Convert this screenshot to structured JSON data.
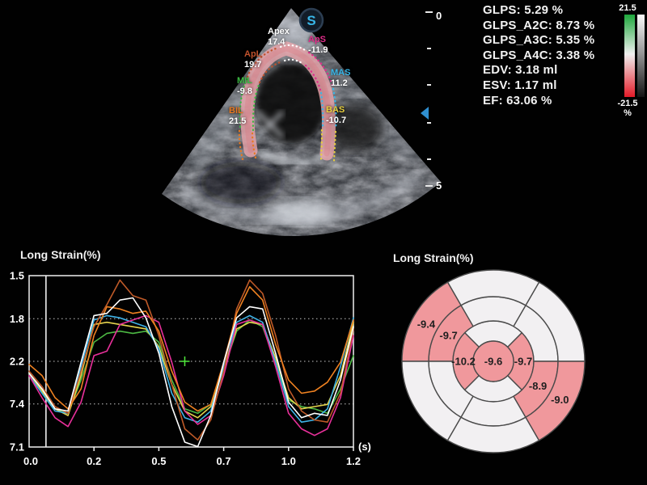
{
  "app": {
    "background": "#010101"
  },
  "ultrasound": {
    "logo_text": "S",
    "segments": [
      {
        "id": "apex",
        "label": "Apex",
        "value": "17.4",
        "color": "#ffffff"
      },
      {
        "id": "apl",
        "label": "ApL",
        "value": "19.7",
        "color": "#c0522d"
      },
      {
        "id": "aps",
        "label": "ApS",
        "value": "-11.9",
        "color": "#e02d8a"
      },
      {
        "id": "mil",
        "label": "MIL",
        "value": "-9.8",
        "color": "#3cb843"
      },
      {
        "id": "mas",
        "label": "MAS",
        "value": "11.2",
        "color": "#38b6e8"
      },
      {
        "id": "bil",
        "label": "BIL",
        "value": "21.5",
        "color": "#e87820"
      },
      {
        "id": "bas",
        "label": "BAS",
        "value": "-10.7",
        "color": "#e8cf3e"
      }
    ],
    "ruler": {
      "top_label": "0",
      "bottom_label": "5"
    }
  },
  "measurements": {
    "lines": [
      "GLPS: 5.29 %",
      "GLPS_A2C: 8.73 %",
      "GLPS_A3C: 5.35 %",
      "GLPS_A4C: 3.38 %",
      "EDV: 3.18 ml",
      "ESV: 1.17 ml",
      "EF: 63.06 %"
    ]
  },
  "colorbar": {
    "max": "21.5",
    "min": "-21.5",
    "unit": "%",
    "positive_color": "#1ea83c",
    "negative_color": "#e41b28"
  },
  "chart": {
    "title": "Long Strain(%)",
    "x_unit": "(s)",
    "cursor_t": 0.065,
    "cross_marker": {
      "t": 0.6,
      "value": 2.2,
      "color": "#50e83c"
    },
    "y_ticks": [
      {
        "value": 21.5,
        "label": "1.5",
        "grid": false
      },
      {
        "value": 11.8,
        "label": "1.8",
        "grid": true
      },
      {
        "value": 2.2,
        "label": "2.2",
        "grid": true
      },
      {
        "value": -7.4,
        "label": "7.4",
        "grid": true
      },
      {
        "value": -17.1,
        "label": "7.1",
        "grid": false
      }
    ],
    "y_tick_labels_clipped_at_screen_edge": true,
    "x_ticks": [
      {
        "t": 0,
        "label": "0.0",
        "tick": false
      },
      {
        "t": 0.25,
        "label": "0.2",
        "tick": true
      },
      {
        "t": 0.5,
        "label": "0.5",
        "tick": true
      },
      {
        "t": 0.75,
        "label": "0.7",
        "tick": true
      },
      {
        "t": 1.0,
        "label": "1.0",
        "tick": true
      },
      {
        "t": 1.25,
        "label": "1.2",
        "tick": true
      }
    ]
  },
  "chart_data": [
    {
      "type": "line",
      "title": "Long Strain(%)",
      "xlabel": "(s)",
      "ylabel": "Long Strain(%)",
      "x_range": [
        0,
        1.25
      ],
      "y_range": [
        -17.1,
        21.5
      ],
      "grid": "dotted horizontal",
      "legend": "none",
      "x": [
        0,
        0.05,
        0.1,
        0.15,
        0.2,
        0.25,
        0.3,
        0.35,
        0.4,
        0.45,
        0.5,
        0.55,
        0.6,
        0.65,
        0.7,
        0.75,
        0.8,
        0.85,
        0.9,
        0.95,
        1,
        1.05,
        1.1,
        1.15,
        1.2,
        1.25
      ],
      "series": [
        {
          "name": "MIL",
          "color": "#4cb843",
          "values": [
            -0.5,
            -4.5,
            -8.5,
            -9.5,
            -2,
            6.5,
            8.5,
            9,
            8.5,
            9,
            6.5,
            -2,
            -8.5,
            -9.5,
            -7.5,
            0.5,
            9,
            11.5,
            10,
            2,
            -6.5,
            -8,
            -8.5,
            -9.5,
            -4,
            3.5
          ]
        },
        {
          "name": "BAS",
          "color": "#e5d44e",
          "values": [
            -0.5,
            -4.5,
            -8.5,
            -10,
            -1,
            10.5,
            11,
            10.5,
            10,
            9.5,
            5.5,
            -3,
            -9,
            -10.5,
            -8,
            0.5,
            9.5,
            11,
            10.5,
            3,
            -6,
            -8.5,
            -8,
            -7.5,
            -1,
            11
          ]
        },
        {
          "name": "MAS",
          "color": "#3fb3e8",
          "values": [
            -1,
            -5,
            -9,
            -9.5,
            1,
            11.5,
            12.5,
            12,
            11,
            10,
            5,
            -5,
            -10.5,
            -11.5,
            -9,
            1,
            11,
            12.5,
            11,
            2,
            -8,
            -11.5,
            -11,
            -8.5,
            1,
            12
          ]
        },
        {
          "name": "ApS",
          "color": "#e8309a",
          "values": [
            -1,
            -6,
            -10.5,
            -12.5,
            -7,
            3.5,
            4.5,
            10.5,
            11.5,
            12.5,
            11,
            2,
            -9,
            -12,
            -10,
            -1,
            10.5,
            11.5,
            10.5,
            1,
            -9.5,
            -13,
            -14.5,
            -13,
            -6,
            8
          ]
        },
        {
          "name": "ApL",
          "color": "#bf5a28",
          "values": [
            0,
            -3.5,
            -8,
            -9.5,
            0,
            10,
            15,
            20.5,
            17,
            16,
            8,
            -3,
            -13,
            -15.5,
            -11,
            0,
            14,
            20.5,
            17.5,
            8,
            -4,
            -9,
            -11,
            -11.5,
            -5,
            9.5
          ]
        },
        {
          "name": "BIL",
          "color": "#f08221",
          "values": [
            1.5,
            -1,
            -6,
            -8.5,
            -4,
            8,
            14.5,
            14,
            13,
            13.5,
            9,
            0,
            -7,
            -9,
            -7.5,
            2,
            13,
            19,
            16,
            6,
            -2,
            -5,
            -4.5,
            -2.5,
            2,
            11.5
          ]
        },
        {
          "name": "Apex",
          "color": "#ffffff",
          "values": [
            -0.5,
            -4,
            -8.5,
            -9,
            2,
            12.5,
            13,
            16,
            16.5,
            12,
            4,
            -8,
            -16,
            -17,
            -10,
            2,
            12,
            14.5,
            14,
            4,
            -7,
            -10.5,
            -9.5,
            -10,
            -2,
            10
          ]
        }
      ]
    },
    {
      "type": "polar_map",
      "title": "Long Strain(%)",
      "labeled_values": [
        -9.4,
        -9.7,
        -10.2,
        -9.6,
        -9.7,
        -8.9,
        -9.0
      ]
    }
  ],
  "bullseye": {
    "title": "Long Strain(%)",
    "radii": [
      25,
      50,
      80,
      113
    ],
    "highlight_color": "#f0989c",
    "base_color": "#f2f0f2",
    "border_color": "#4a4a4a",
    "center": {
      "value": "-9.6",
      "highlighted": true
    },
    "segments": [
      {
        "ring": 1,
        "a0": 45,
        "a1": 135,
        "highlighted": false
      },
      {
        "ring": 1,
        "a0": 135,
        "a1": 225,
        "highlighted": true,
        "value": "-10.2",
        "label_angle": 180,
        "label_radius": 37
      },
      {
        "ring": 1,
        "a0": 225,
        "a1": 315,
        "highlighted": false
      },
      {
        "ring": 1,
        "a0": -45,
        "a1": 45,
        "highlighted": true,
        "value": "-9.7",
        "label_angle": 0,
        "label_radius": 37
      },
      {
        "ring": 2,
        "a0": 0,
        "a1": 60,
        "highlighted": false
      },
      {
        "ring": 2,
        "a0": 60,
        "a1": 120,
        "highlighted": false
      },
      {
        "ring": 2,
        "a0": 120,
        "a1": 180,
        "highlighted": true,
        "value": "-9.7",
        "label_angle": 150,
        "label_radius": 64
      },
      {
        "ring": 2,
        "a0": 180,
        "a1": 240,
        "highlighted": false
      },
      {
        "ring": 2,
        "a0": 240,
        "a1": 300,
        "highlighted": false
      },
      {
        "ring": 2,
        "a0": 300,
        "a1": 360,
        "highlighted": true,
        "value": "-8.9",
        "label_angle": 331,
        "label_radius": 63
      },
      {
        "ring": 3,
        "a0": 0,
        "a1": 60,
        "highlighted": false
      },
      {
        "ring": 3,
        "a0": 60,
        "a1": 120,
        "highlighted": false
      },
      {
        "ring": 3,
        "a0": 120,
        "a1": 180,
        "highlighted": true,
        "value": "-9.4",
        "label_angle": 151,
        "label_radius": 95
      },
      {
        "ring": 3,
        "a0": 180,
        "a1": 240,
        "highlighted": false
      },
      {
        "ring": 3,
        "a0": 240,
        "a1": 300,
        "highlighted": false
      },
      {
        "ring": 3,
        "a0": 300,
        "a1": 360,
        "highlighted": true,
        "value": "-9.0",
        "label_angle": 330,
        "label_radius": 95
      }
    ]
  }
}
